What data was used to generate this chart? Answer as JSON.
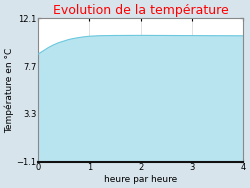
{
  "title": "Evolution de la température",
  "title_color": "#ff0000",
  "xlabel": "heure par heure",
  "ylabel": "Température en °C",
  "background_color": "#d8e4ec",
  "plot_background": "#ffffff",
  "line_color": "#6cc8de",
  "fill_color": "#b8e4f0",
  "xlim": [
    0,
    4
  ],
  "ylim": [
    -1.1,
    12.1
  ],
  "xticks": [
    0,
    1,
    2,
    3,
    4
  ],
  "yticks": [
    -1.1,
    3.3,
    7.7,
    12.1
  ],
  "x_data": [
    0,
    0.05,
    0.1,
    0.15,
    0.2,
    0.3,
    0.4,
    0.5,
    0.6,
    0.7,
    0.8,
    0.9,
    1.0,
    1.2,
    1.5,
    2.0,
    2.5,
    3.0,
    3.5,
    4.0
  ],
  "y_data": [
    8.8,
    8.95,
    9.1,
    9.25,
    9.4,
    9.65,
    9.85,
    10.0,
    10.15,
    10.25,
    10.33,
    10.4,
    10.45,
    10.5,
    10.52,
    10.53,
    10.52,
    10.51,
    10.5,
    10.49
  ],
  "title_fontsize": 9,
  "label_fontsize": 6.5,
  "tick_fontsize": 6,
  "grid_color": "#c8c8c8"
}
